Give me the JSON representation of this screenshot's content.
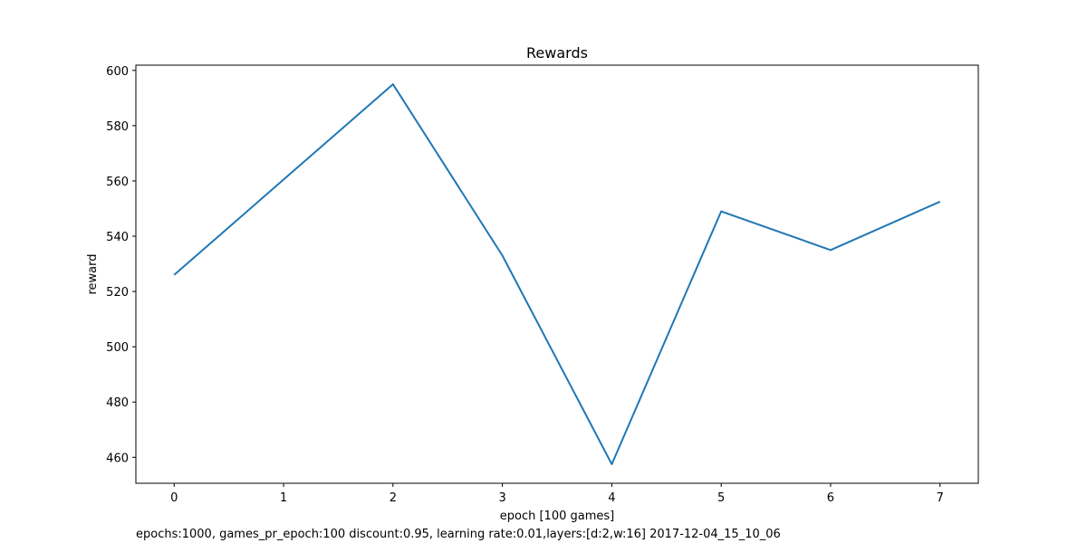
{
  "chart_data": {
    "type": "line",
    "title": "Rewards",
    "xlabel": "epoch [100 games]",
    "ylabel": "reward",
    "x": [
      0,
      1,
      2,
      3,
      4,
      5,
      6,
      7
    ],
    "series": [
      {
        "values": [
          526,
          560.5,
          595,
          533,
          457.5,
          549,
          535,
          552.5
        ],
        "color": "#1f77b4"
      }
    ],
    "xlim": [
      -0.35,
      7.35
    ],
    "ylim": [
      450.6,
      601.9
    ],
    "xticks": [
      0,
      1,
      2,
      3,
      4,
      5,
      6,
      7
    ],
    "yticks": [
      460,
      480,
      500,
      520,
      540,
      560,
      580,
      600
    ],
    "grid": false,
    "legend": "none"
  },
  "footer": {
    "text": "epochs:1000, games_pr_epoch:100 discount:0.95, learning rate:0.01,layers:[d:2,w:16] 2017-12-04_15_10_06"
  }
}
